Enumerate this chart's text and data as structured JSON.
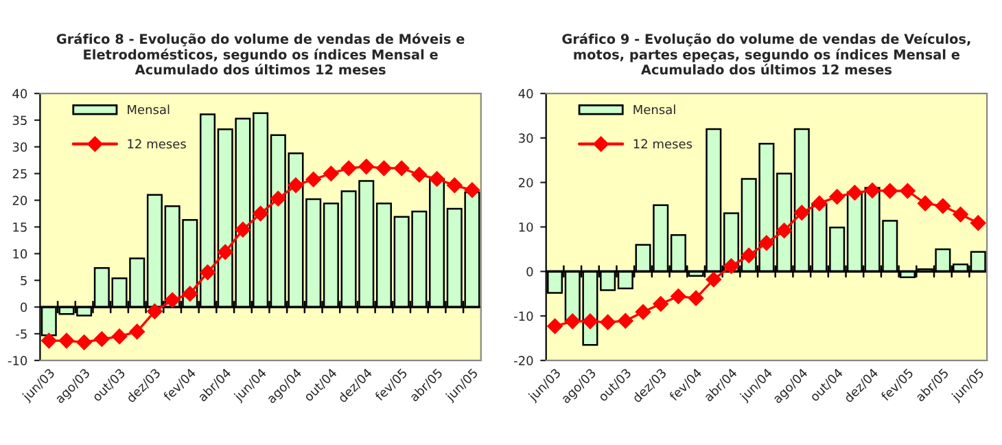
{
  "chart_data": [
    {
      "type": "bar",
      "title": "Gráfico 8 - Evolução do volume de vendas de Móveis e\nEletrodomésticos, segundo os índices Mensal e\nAcumulado dos últimos 12 meses",
      "categories": [
        "jun/03",
        null,
        "ago/03",
        null,
        "out/03",
        null,
        "dez/03",
        null,
        "fev/04",
        null,
        "abr/04",
        null,
        "jun/04",
        null,
        "ago/04",
        null,
        "out/04",
        null,
        "dez/04",
        null,
        "fev/05",
        null,
        "abr/05",
        null,
        "jun/05"
      ],
      "series": [
        {
          "name": "Mensal",
          "color": "#ccffcc",
          "values": [
            -5.3,
            -1.3,
            -1.6,
            7.3,
            5.4,
            9.1,
            21.0,
            18.9,
            16.3,
            36.1,
            33.3,
            35.3,
            36.3,
            32.2,
            28.8,
            20.2,
            19.4,
            21.7,
            23.6,
            19.4,
            16.9,
            17.9,
            24.0,
            18.4,
            21.5
          ]
        },
        {
          "name": "12 meses",
          "type": "line",
          "color": "#ff0000",
          "values": [
            -6.3,
            -6.3,
            -6.6,
            -6.0,
            -5.5,
            -4.6,
            -0.8,
            1.3,
            2.5,
            6.5,
            10.3,
            14.5,
            17.5,
            20.3,
            22.8,
            23.9,
            25.0,
            26.0,
            26.3,
            26.0,
            26.0,
            24.8,
            24.0,
            22.8,
            21.9
          ]
        }
      ],
      "ylim": [
        -10,
        40
      ],
      "yticks": [
        -10,
        -5,
        0,
        5,
        10,
        15,
        20,
        25,
        30,
        35,
        40
      ],
      "ref_lines": [
        {
          "axis": "y",
          "value": 0,
          "color": "#000000"
        }
      ],
      "grid": false,
      "legend": "top left",
      "marker": "diamond",
      "line_style": "solid"
    },
    {
      "type": "bar",
      "title": "Gráfico 9 - Evolução do volume de vendas de Veículos,\nmotos, partes epeças, segundo os índices Mensal e\nAcumulado dos últimos 12 meses",
      "categories": [
        "jun/03",
        null,
        "ago/03",
        null,
        "out/03",
        null,
        "dez/03",
        null,
        "fev/04",
        null,
        "abr/04",
        null,
        "jun/04",
        null,
        "ago/04",
        null,
        "out/04",
        null,
        "dez/04",
        null,
        "fev/05",
        null,
        "abr/05",
        null,
        "jun/05"
      ],
      "series": [
        {
          "name": "Mensal",
          "color": "#ccffcc",
          "values": [
            -4.8,
            -11.2,
            -16.5,
            -4.2,
            -3.8,
            6.0,
            14.9,
            8.2,
            -1.0,
            32.0,
            13.1,
            20.8,
            28.7,
            22.0,
            32.0,
            15.2,
            9.9,
            17.8,
            18.8,
            11.4,
            -1.3,
            0.5,
            5.0,
            1.6,
            4.4
          ]
        },
        {
          "name": "12 meses",
          "type": "line",
          "color": "#ff0000",
          "values": [
            -12.3,
            -11.2,
            -11.2,
            -11.4,
            -11.1,
            -9.1,
            -7.3,
            -5.6,
            -6.0,
            -1.8,
            1.2,
            3.6,
            6.4,
            9.2,
            13.2,
            15.3,
            16.8,
            17.7,
            18.2,
            18.1,
            18.1,
            15.3,
            14.7,
            12.8,
            10.9
          ]
        }
      ],
      "ylim": [
        -20,
        40
      ],
      "yticks": [
        -20,
        -10,
        0,
        10,
        20,
        30,
        40
      ],
      "ref_lines": [
        {
          "axis": "y",
          "value": 0,
          "color": "#000000"
        }
      ],
      "grid": false,
      "legend": "top left",
      "marker": "diamond",
      "line_style": "solid"
    }
  ]
}
